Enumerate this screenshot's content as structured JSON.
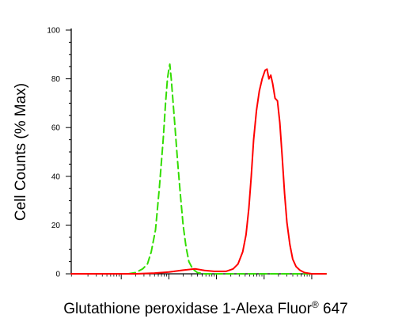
{
  "chart_data": {
    "type": "line",
    "xlabel": {
      "text": "Glutathione peroxidase 1-Alexa Fluor",
      "superscript": "®",
      "suffix": " 647"
    },
    "ylabel": "Cell Counts (% Max)",
    "x_scale": "log",
    "xlim": [
      -1.05,
      4.3
    ],
    "ylim": [
      0,
      100
    ],
    "y_ticks": [
      0,
      20,
      40,
      60,
      80,
      100
    ],
    "x_major_ticks": [
      0,
      1,
      2,
      3,
      4
    ],
    "grid": false,
    "legend": "none",
    "series": [
      {
        "style": "dashed",
        "color": "#33dd00",
        "points": [
          [
            0.15,
            0
          ],
          [
            0.3,
            0.5
          ],
          [
            0.45,
            2
          ],
          [
            0.55,
            4
          ],
          [
            0.63,
            9
          ],
          [
            0.72,
            18
          ],
          [
            0.8,
            35
          ],
          [
            0.88,
            55
          ],
          [
            0.93,
            70
          ],
          [
            0.97,
            80
          ],
          [
            1.0,
            84
          ],
          [
            1.02,
            86
          ],
          [
            1.05,
            80
          ],
          [
            1.09,
            70
          ],
          [
            1.13,
            60
          ],
          [
            1.18,
            47
          ],
          [
            1.24,
            33
          ],
          [
            1.3,
            20
          ],
          [
            1.36,
            11
          ],
          [
            1.42,
            5
          ],
          [
            1.5,
            2
          ],
          [
            1.6,
            0.5
          ],
          [
            1.75,
            0
          ],
          [
            4.3,
            0
          ]
        ]
      },
      {
        "style": "solid",
        "color": "#ff0000",
        "points": [
          [
            -1.05,
            0
          ],
          [
            0.3,
            0
          ],
          [
            0.7,
            0.3
          ],
          [
            1.0,
            0.7
          ],
          [
            1.3,
            1.5
          ],
          [
            1.55,
            2
          ],
          [
            1.75,
            1.4
          ],
          [
            1.95,
            1
          ],
          [
            2.2,
            1
          ],
          [
            2.35,
            2
          ],
          [
            2.45,
            4
          ],
          [
            2.55,
            9
          ],
          [
            2.62,
            16
          ],
          [
            2.68,
            27
          ],
          [
            2.73,
            40
          ],
          [
            2.78,
            55
          ],
          [
            2.84,
            67
          ],
          [
            2.9,
            75
          ],
          [
            2.96,
            80
          ],
          [
            3.02,
            83.5
          ],
          [
            3.06,
            84
          ],
          [
            3.1,
            80
          ],
          [
            3.14,
            81.5
          ],
          [
            3.18,
            78
          ],
          [
            3.23,
            72
          ],
          [
            3.28,
            71
          ],
          [
            3.33,
            62
          ],
          [
            3.38,
            48
          ],
          [
            3.43,
            33
          ],
          [
            3.48,
            21
          ],
          [
            3.54,
            12
          ],
          [
            3.6,
            6
          ],
          [
            3.67,
            3
          ],
          [
            3.75,
            1.5
          ],
          [
            3.85,
            0.5
          ],
          [
            4.0,
            0
          ],
          [
            4.3,
            0
          ]
        ]
      }
    ]
  }
}
